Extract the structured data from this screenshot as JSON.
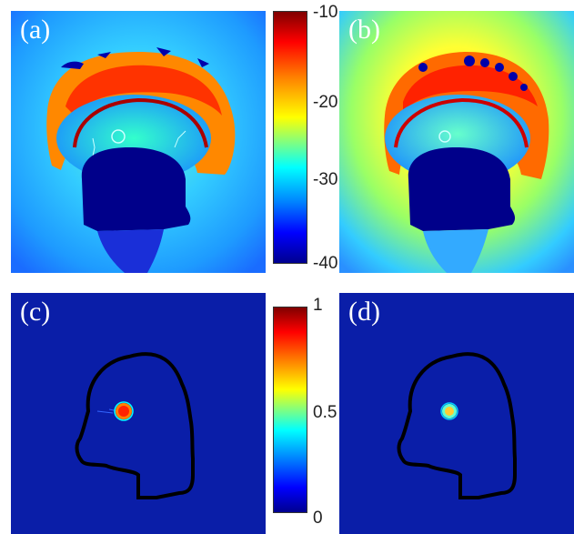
{
  "panels": {
    "a": {
      "label": "(a)"
    },
    "b": {
      "label": "(b)"
    },
    "c": {
      "label": "(c)"
    },
    "d": {
      "label": "(d)"
    }
  },
  "colorbar_top": {
    "ticks": [
      "-10",
      "-20",
      "-30",
      "-40"
    ]
  },
  "colorbar_bottom": {
    "ticks": [
      "1",
      "0.5",
      "0"
    ]
  },
  "colors": {
    "jet_dark_red": "#800000",
    "jet_red": "#ff0000",
    "jet_orange": "#ff8000",
    "jet_yellow": "#ffff00",
    "jet_cyan": "#00ffff",
    "jet_blue": "#0000ff",
    "jet_dark_blue": "#00008f",
    "background_blue": "#0a1ea8",
    "outline": "#000000"
  }
}
